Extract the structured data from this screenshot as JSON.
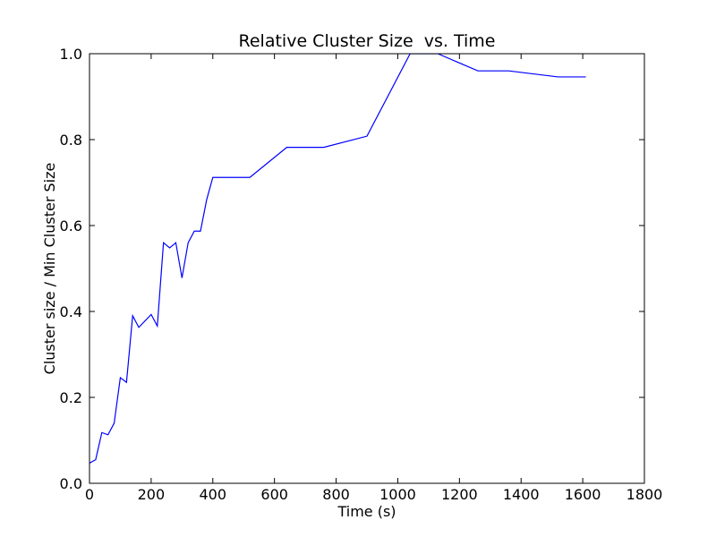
{
  "chart_data": {
    "type": "line",
    "title": "Relative Cluster Size  vs. Time",
    "xlabel": "Time (s)",
    "ylabel": "Cluster size / Min Cluster Size",
    "xlim": [
      0,
      1800
    ],
    "ylim": [
      0.0,
      1.0
    ],
    "x_ticks": [
      0,
      200,
      400,
      600,
      800,
      1000,
      1200,
      1400,
      1600,
      1800
    ],
    "x_tick_labels": [
      "0",
      "200",
      "400",
      "600",
      "800",
      "1000",
      "1200",
      "1400",
      "1600",
      "1800"
    ],
    "y_ticks": [
      0.0,
      0.2,
      0.4,
      0.6,
      0.8,
      1.0
    ],
    "y_tick_labels": [
      "0.0",
      "0.2",
      "0.4",
      "0.6",
      "0.8",
      "1.0"
    ],
    "grid": false,
    "legend": "none",
    "line_color": "#0000ff",
    "series": [
      {
        "x": [
          0,
          20,
          40,
          60,
          80,
          100,
          120,
          140,
          160,
          200,
          220,
          240,
          260,
          280,
          300,
          320,
          340,
          360,
          380,
          400,
          520,
          640,
          760,
          900,
          1040,
          1130,
          1260,
          1360,
          1520,
          1610
        ],
        "values": [
          0.047,
          0.055,
          0.118,
          0.113,
          0.14,
          0.246,
          0.235,
          0.39,
          0.363,
          0.393,
          0.366,
          0.56,
          0.548,
          0.56,
          0.478,
          0.56,
          0.587,
          0.587,
          0.66,
          0.712,
          0.712,
          0.782,
          0.782,
          0.808,
          1.0,
          1.0,
          0.96,
          0.96,
          0.946,
          0.946
        ]
      }
    ]
  }
}
